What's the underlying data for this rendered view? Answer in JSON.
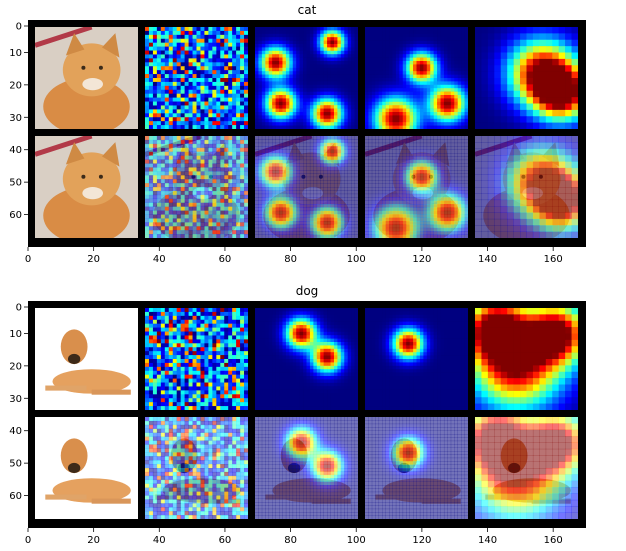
{
  "chart_data": [
    {
      "type": "heatmap",
      "title": "cat",
      "subject": "cat-photo",
      "xlim": [
        0,
        170
      ],
      "ylim": [
        70,
        0
      ],
      "xticks": [
        0,
        20,
        40,
        60,
        80,
        100,
        120,
        140,
        160
      ],
      "yticks": [
        0,
        10,
        20,
        30,
        40,
        50,
        60
      ],
      "grid": false,
      "colormap": "jet",
      "rows": [
        "heatmap",
        "overlay"
      ],
      "columns": [
        "original",
        "fine-noise",
        "blobs-small",
        "blobs-medium",
        "coarse"
      ],
      "hotspots": [
        [
          [
            0.88,
            0.22,
            0.1
          ],
          [
            0.85,
            0.8,
            0.1
          ],
          [
            0.55,
            0.3,
            0.1
          ]
        ],
        [
          [
            0.2,
            0.35,
            0.1
          ],
          [
            0.25,
            0.75,
            0.1
          ],
          [
            0.7,
            0.85,
            0.1
          ],
          [
            0.75,
            0.15,
            0.08
          ]
        ],
        [
          [
            0.55,
            0.4,
            0.1
          ],
          [
            0.8,
            0.75,
            0.12
          ],
          [
            0.3,
            0.9,
            0.14
          ]
        ],
        [
          [
            0.65,
            0.45,
            0.22
          ],
          [
            0.85,
            0.65,
            0.18
          ]
        ]
      ]
    },
    {
      "type": "heatmap",
      "title": "dog",
      "subject": "dog-photo",
      "xlim": [
        0,
        170
      ],
      "ylim": [
        70,
        0
      ],
      "xticks": [
        0,
        20,
        40,
        60,
        80,
        100,
        120,
        140,
        160
      ],
      "yticks": [
        0,
        10,
        20,
        30,
        40,
        50,
        60
      ],
      "grid": false,
      "colormap": "jet",
      "rows": [
        "heatmap",
        "overlay"
      ],
      "columns": [
        "original",
        "fine-noise",
        "blobs-small",
        "blobs-medium",
        "coarse"
      ],
      "hotspots": [
        [
          [
            0.3,
            0.35,
            0.1
          ],
          [
            0.7,
            0.55,
            0.1
          ]
        ],
        [
          [
            0.45,
            0.25,
            0.1
          ],
          [
            0.7,
            0.48,
            0.1
          ]
        ],
        [
          [
            0.42,
            0.35,
            0.1
          ]
        ],
        [
          [
            0.4,
            0.55,
            0.3
          ],
          [
            0.2,
            0.2,
            0.2
          ],
          [
            0.8,
            0.25,
            0.2
          ]
        ]
      ]
    }
  ]
}
